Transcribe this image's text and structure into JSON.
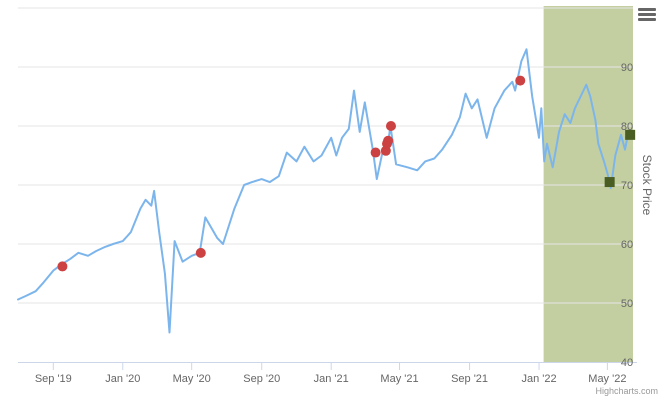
{
  "chart_data": {
    "type": "line",
    "title": "",
    "xlabel": "",
    "ylabel": "Stock Price",
    "ylim": [
      40,
      100
    ],
    "xlim": [
      "2019-07-01",
      "2022-06-15"
    ],
    "x_ticks": [
      "2019-09-01",
      "2020-01-01",
      "2020-05-01",
      "2020-09-01",
      "2021-01-01",
      "2021-05-01",
      "2021-09-01",
      "2022-01-01",
      "2022-05-01"
    ],
    "x_tick_labels": [
      "Sep '19",
      "Jan '20",
      "May '20",
      "Sep '20",
      "Jan '21",
      "May '21",
      "Sep '21",
      "Jan '22",
      "May '22"
    ],
    "y_ticks": [
      40,
      50,
      60,
      70,
      80,
      90
    ],
    "y_axis_side": "right",
    "grid": "horizontal",
    "series": [
      {
        "type": "line",
        "color": "#7cb5ec",
        "points": [
          [
            "2019-07-01",
            50.6
          ],
          [
            "2019-07-15",
            51.2
          ],
          [
            "2019-08-01",
            52.0
          ],
          [
            "2019-08-15",
            53.5
          ],
          [
            "2019-09-01",
            55.5
          ],
          [
            "2019-09-15",
            56.5
          ],
          [
            "2019-10-01",
            57.5
          ],
          [
            "2019-10-15",
            58.5
          ],
          [
            "2019-11-01",
            58.0
          ],
          [
            "2019-11-15",
            58.8
          ],
          [
            "2019-12-01",
            59.5
          ],
          [
            "2019-12-15",
            60.0
          ],
          [
            "2020-01-01",
            60.5
          ],
          [
            "2020-01-15",
            62.0
          ],
          [
            "2020-02-01",
            66.0
          ],
          [
            "2020-02-10",
            67.5
          ],
          [
            "2020-02-20",
            66.5
          ],
          [
            "2020-02-25",
            69.0
          ],
          [
            "2020-03-05",
            62.0
          ],
          [
            "2020-03-15",
            55.0
          ],
          [
            "2020-03-23",
            45.0
          ],
          [
            "2020-04-01",
            60.5
          ],
          [
            "2020-04-15",
            57.0
          ],
          [
            "2020-05-01",
            58.0
          ],
          [
            "2020-05-15",
            58.5
          ],
          [
            "2020-05-25",
            64.5
          ],
          [
            "2020-06-15",
            61.0
          ],
          [
            "2020-06-25",
            60.0
          ],
          [
            "2020-07-15",
            66.0
          ],
          [
            "2020-08-01",
            70.0
          ],
          [
            "2020-08-15",
            70.5
          ],
          [
            "2020-09-01",
            71.0
          ],
          [
            "2020-09-15",
            70.5
          ],
          [
            "2020-10-01",
            71.5
          ],
          [
            "2020-10-15",
            75.5
          ],
          [
            "2020-11-01",
            74.0
          ],
          [
            "2020-11-15",
            76.5
          ],
          [
            "2020-12-01",
            74.0
          ],
          [
            "2020-12-15",
            75.0
          ],
          [
            "2021-01-01",
            78.0
          ],
          [
            "2021-01-10",
            75.0
          ],
          [
            "2021-01-20",
            78.0
          ],
          [
            "2021-02-01",
            79.5
          ],
          [
            "2021-02-10",
            86.0
          ],
          [
            "2021-02-20",
            79.0
          ],
          [
            "2021-03-01",
            84.0
          ],
          [
            "2021-03-15",
            76.0
          ],
          [
            "2021-03-22",
            71.0
          ],
          [
            "2021-04-01",
            75.5
          ],
          [
            "2021-04-10",
            76.5
          ],
          [
            "2021-04-15",
            80.0
          ],
          [
            "2021-04-25",
            73.5
          ],
          [
            "2021-05-15",
            73.0
          ],
          [
            "2021-06-01",
            72.5
          ],
          [
            "2021-06-15",
            74.0
          ],
          [
            "2021-07-01",
            74.5
          ],
          [
            "2021-07-15",
            76.0
          ],
          [
            "2021-08-01",
            78.5
          ],
          [
            "2021-08-15",
            81.5
          ],
          [
            "2021-08-25",
            85.5
          ],
          [
            "2021-09-05",
            83.0
          ],
          [
            "2021-09-15",
            84.5
          ],
          [
            "2021-10-01",
            78.0
          ],
          [
            "2021-10-15",
            83.0
          ],
          [
            "2021-11-01",
            86.0
          ],
          [
            "2021-11-15",
            87.5
          ],
          [
            "2021-11-20",
            86.0
          ],
          [
            "2021-12-01",
            91.0
          ],
          [
            "2021-12-10",
            93.0
          ],
          [
            "2021-12-20",
            85.0
          ],
          [
            "2022-01-01",
            78.0
          ],
          [
            "2022-01-05",
            83.0
          ],
          [
            "2022-01-10",
            74.0
          ],
          [
            "2022-01-15",
            77.0
          ],
          [
            "2022-01-25",
            73.0
          ],
          [
            "2022-02-05",
            79.0
          ],
          [
            "2022-02-15",
            82.0
          ],
          [
            "2022-02-25",
            80.5
          ],
          [
            "2022-03-05",
            83.0
          ],
          [
            "2022-03-15",
            85.0
          ],
          [
            "2022-03-25",
            87.0
          ],
          [
            "2022-04-01",
            85.0
          ],
          [
            "2022-04-10",
            81.0
          ],
          [
            "2022-04-15",
            77.0
          ],
          [
            "2022-04-25",
            74.0
          ],
          [
            "2022-05-01",
            72.0
          ],
          [
            "2022-05-07",
            69.5
          ],
          [
            "2022-05-15",
            75.0
          ],
          [
            "2022-05-25",
            78.5
          ],
          [
            "2022-06-01",
            76.0
          ],
          [
            "2022-06-05",
            78.0
          ]
        ]
      }
    ],
    "plot_bands": [
      {
        "from": "2022-01-09",
        "to": "2022-06-15",
        "color": "#c3cfa1"
      }
    ],
    "markers": [
      {
        "x": "2019-09-17",
        "y": 56.2,
        "shape": "circle",
        "color": "#cc4242"
      },
      {
        "x": "2020-05-17",
        "y": 58.5,
        "shape": "circle",
        "color": "#cc4242"
      },
      {
        "x": "2021-03-20",
        "y": 75.5,
        "shape": "circle",
        "color": "#cc4242"
      },
      {
        "x": "2021-04-07",
        "y": 75.8,
        "shape": "circle",
        "color": "#cc4242"
      },
      {
        "x": "2021-04-09",
        "y": 77.0,
        "shape": "circle",
        "color": "#cc4242"
      },
      {
        "x": "2021-04-11",
        "y": 77.5,
        "shape": "circle",
        "color": "#cc4242"
      },
      {
        "x": "2021-04-16",
        "y": 80.0,
        "shape": "circle",
        "color": "#cc4242"
      },
      {
        "x": "2021-11-29",
        "y": 87.7,
        "shape": "circle",
        "color": "#cc4242"
      },
      {
        "x": "2022-05-05",
        "y": 70.5,
        "shape": "square",
        "color": "#4a5d23"
      },
      {
        "x": "2022-06-10",
        "y": 78.5,
        "shape": "square",
        "color": "#4a5d23"
      }
    ]
  },
  "credits": {
    "text": "Highcharts.com"
  },
  "menu": {
    "icon": "hamburger-menu-icon"
  }
}
